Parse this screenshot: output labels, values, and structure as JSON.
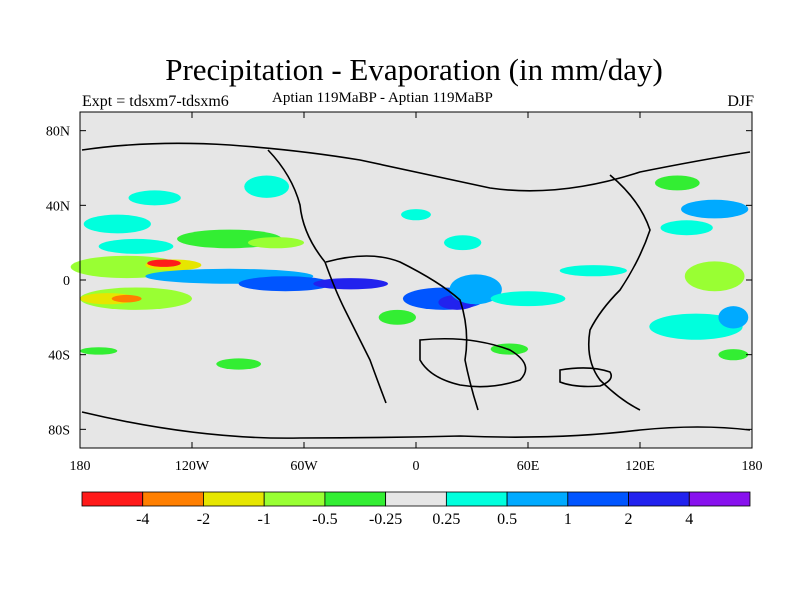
{
  "title": "Precipitation - Evaporation (in mm/day)",
  "experiment": "Expt = tdsxm7-tdsxm6",
  "period": "Aptian   119MaBP - Aptian   119MaBP",
  "season": "DJF",
  "axes": {
    "lon_ticks": [
      {
        "lon": -180,
        "label": "180"
      },
      {
        "lon": -120,
        "label": "120W"
      },
      {
        "lon": -60,
        "label": "60W"
      },
      {
        "lon": 0,
        "label": "0"
      },
      {
        "lon": 60,
        "label": "60E"
      },
      {
        "lon": 120,
        "label": "120E"
      },
      {
        "lon": 180,
        "label": "180"
      }
    ],
    "lat_ticks": [
      {
        "lat": 80,
        "label": "80N"
      },
      {
        "lat": 40,
        "label": "40N"
      },
      {
        "lat": 0,
        "label": "0"
      },
      {
        "lat": -40,
        "label": "40S"
      },
      {
        "lat": -80,
        "label": "80S"
      }
    ],
    "lon_range": [
      -180,
      180
    ],
    "lat_range": [
      -90,
      90
    ]
  },
  "colorbar": {
    "colors": [
      "#ff1a1a",
      "#ff7f00",
      "#e6e600",
      "#99ff33",
      "#33ee33",
      "#e6e6e6",
      "#00ffdd",
      "#00aaff",
      "#0055ff",
      "#2222ee",
      "#8811ee"
    ],
    "labels": [
      "-4",
      "-2",
      "-1",
      "-0.5",
      "-0.25",
      "0.25",
      "0.5",
      "1",
      "2",
      "4"
    ]
  },
  "field_blobs": [
    {
      "lon": -155,
      "lat": 7,
      "rlon": 30,
      "rlat": 6,
      "c": 3
    },
    {
      "lon": -130,
      "lat": 8,
      "rlon": 15,
      "rlat": 3,
      "c": 2
    },
    {
      "lon": -135,
      "lat": 9,
      "rlon": 9,
      "rlat": 2,
      "c": 0
    },
    {
      "lon": -150,
      "lat": -10,
      "rlon": 30,
      "rlat": 6,
      "c": 3
    },
    {
      "lon": -165,
      "lat": -10,
      "rlon": 15,
      "rlat": 3,
      "c": 2
    },
    {
      "lon": -155,
      "lat": -10,
      "rlon": 8,
      "rlat": 2,
      "c": 1
    },
    {
      "lon": -100,
      "lat": 2,
      "rlon": 45,
      "rlat": 4,
      "c": 7
    },
    {
      "lon": -70,
      "lat": -2,
      "rlon": 25,
      "rlat": 4,
      "c": 8
    },
    {
      "lon": -35,
      "lat": -2,
      "rlon": 20,
      "rlat": 3,
      "c": 9
    },
    {
      "lon": 15,
      "lat": -10,
      "rlon": 22,
      "rlat": 6,
      "c": 8
    },
    {
      "lon": 22,
      "lat": -12,
      "rlon": 10,
      "rlat": 4,
      "c": 9
    },
    {
      "lon": 32,
      "lat": -5,
      "rlon": 14,
      "rlat": 8,
      "c": 7
    },
    {
      "lon": -160,
      "lat": 30,
      "rlon": 18,
      "rlat": 5,
      "c": 6
    },
    {
      "lon": -140,
      "lat": 44,
      "rlon": 14,
      "rlat": 4,
      "c": 6
    },
    {
      "lon": -80,
      "lat": 50,
      "rlon": 12,
      "rlat": 6,
      "c": 6
    },
    {
      "lon": -150,
      "lat": 18,
      "rlon": 20,
      "rlat": 4,
      "c": 6
    },
    {
      "lon": 160,
      "lat": 2,
      "rlon": 16,
      "rlat": 8,
      "c": 3
    },
    {
      "lon": 145,
      "lat": 28,
      "rlon": 14,
      "rlat": 4,
      "c": 6
    },
    {
      "lon": 160,
      "lat": 38,
      "rlon": 18,
      "rlat": 5,
      "c": 7
    },
    {
      "lon": 150,
      "lat": -25,
      "rlon": 25,
      "rlat": 7,
      "c": 6
    },
    {
      "lon": 170,
      "lat": -20,
      "rlon": 8,
      "rlat": 6,
      "c": 7
    },
    {
      "lon": 60,
      "lat": -10,
      "rlon": 20,
      "rlat": 4,
      "c": 6
    },
    {
      "lon": 95,
      "lat": 5,
      "rlon": 18,
      "rlat": 3,
      "c": 6
    },
    {
      "lon": 0,
      "lat": 35,
      "rlon": 8,
      "rlat": 3,
      "c": 6
    },
    {
      "lon": -100,
      "lat": 22,
      "rlon": 28,
      "rlat": 5,
      "c": 4
    },
    {
      "lon": -75,
      "lat": 20,
      "rlon": 15,
      "rlat": 3,
      "c": 3
    },
    {
      "lon": -10,
      "lat": -20,
      "rlon": 10,
      "rlat": 4,
      "c": 4
    },
    {
      "lon": 50,
      "lat": -37,
      "rlon": 10,
      "rlat": 3,
      "c": 4
    },
    {
      "lon": -170,
      "lat": -38,
      "rlon": 10,
      "rlat": 2,
      "c": 4
    },
    {
      "lon": -95,
      "lat": -45,
      "rlon": 12,
      "rlat": 3,
      "c": 4
    },
    {
      "lon": 140,
      "lat": 52,
      "rlon": 12,
      "rlat": 4,
      "c": 4
    },
    {
      "lon": 25,
      "lat": 20,
      "rlon": 10,
      "rlat": 4,
      "c": 6
    },
    {
      "lon": 170,
      "lat": -40,
      "rlon": 8,
      "rlat": 3,
      "c": 4
    }
  ]
}
